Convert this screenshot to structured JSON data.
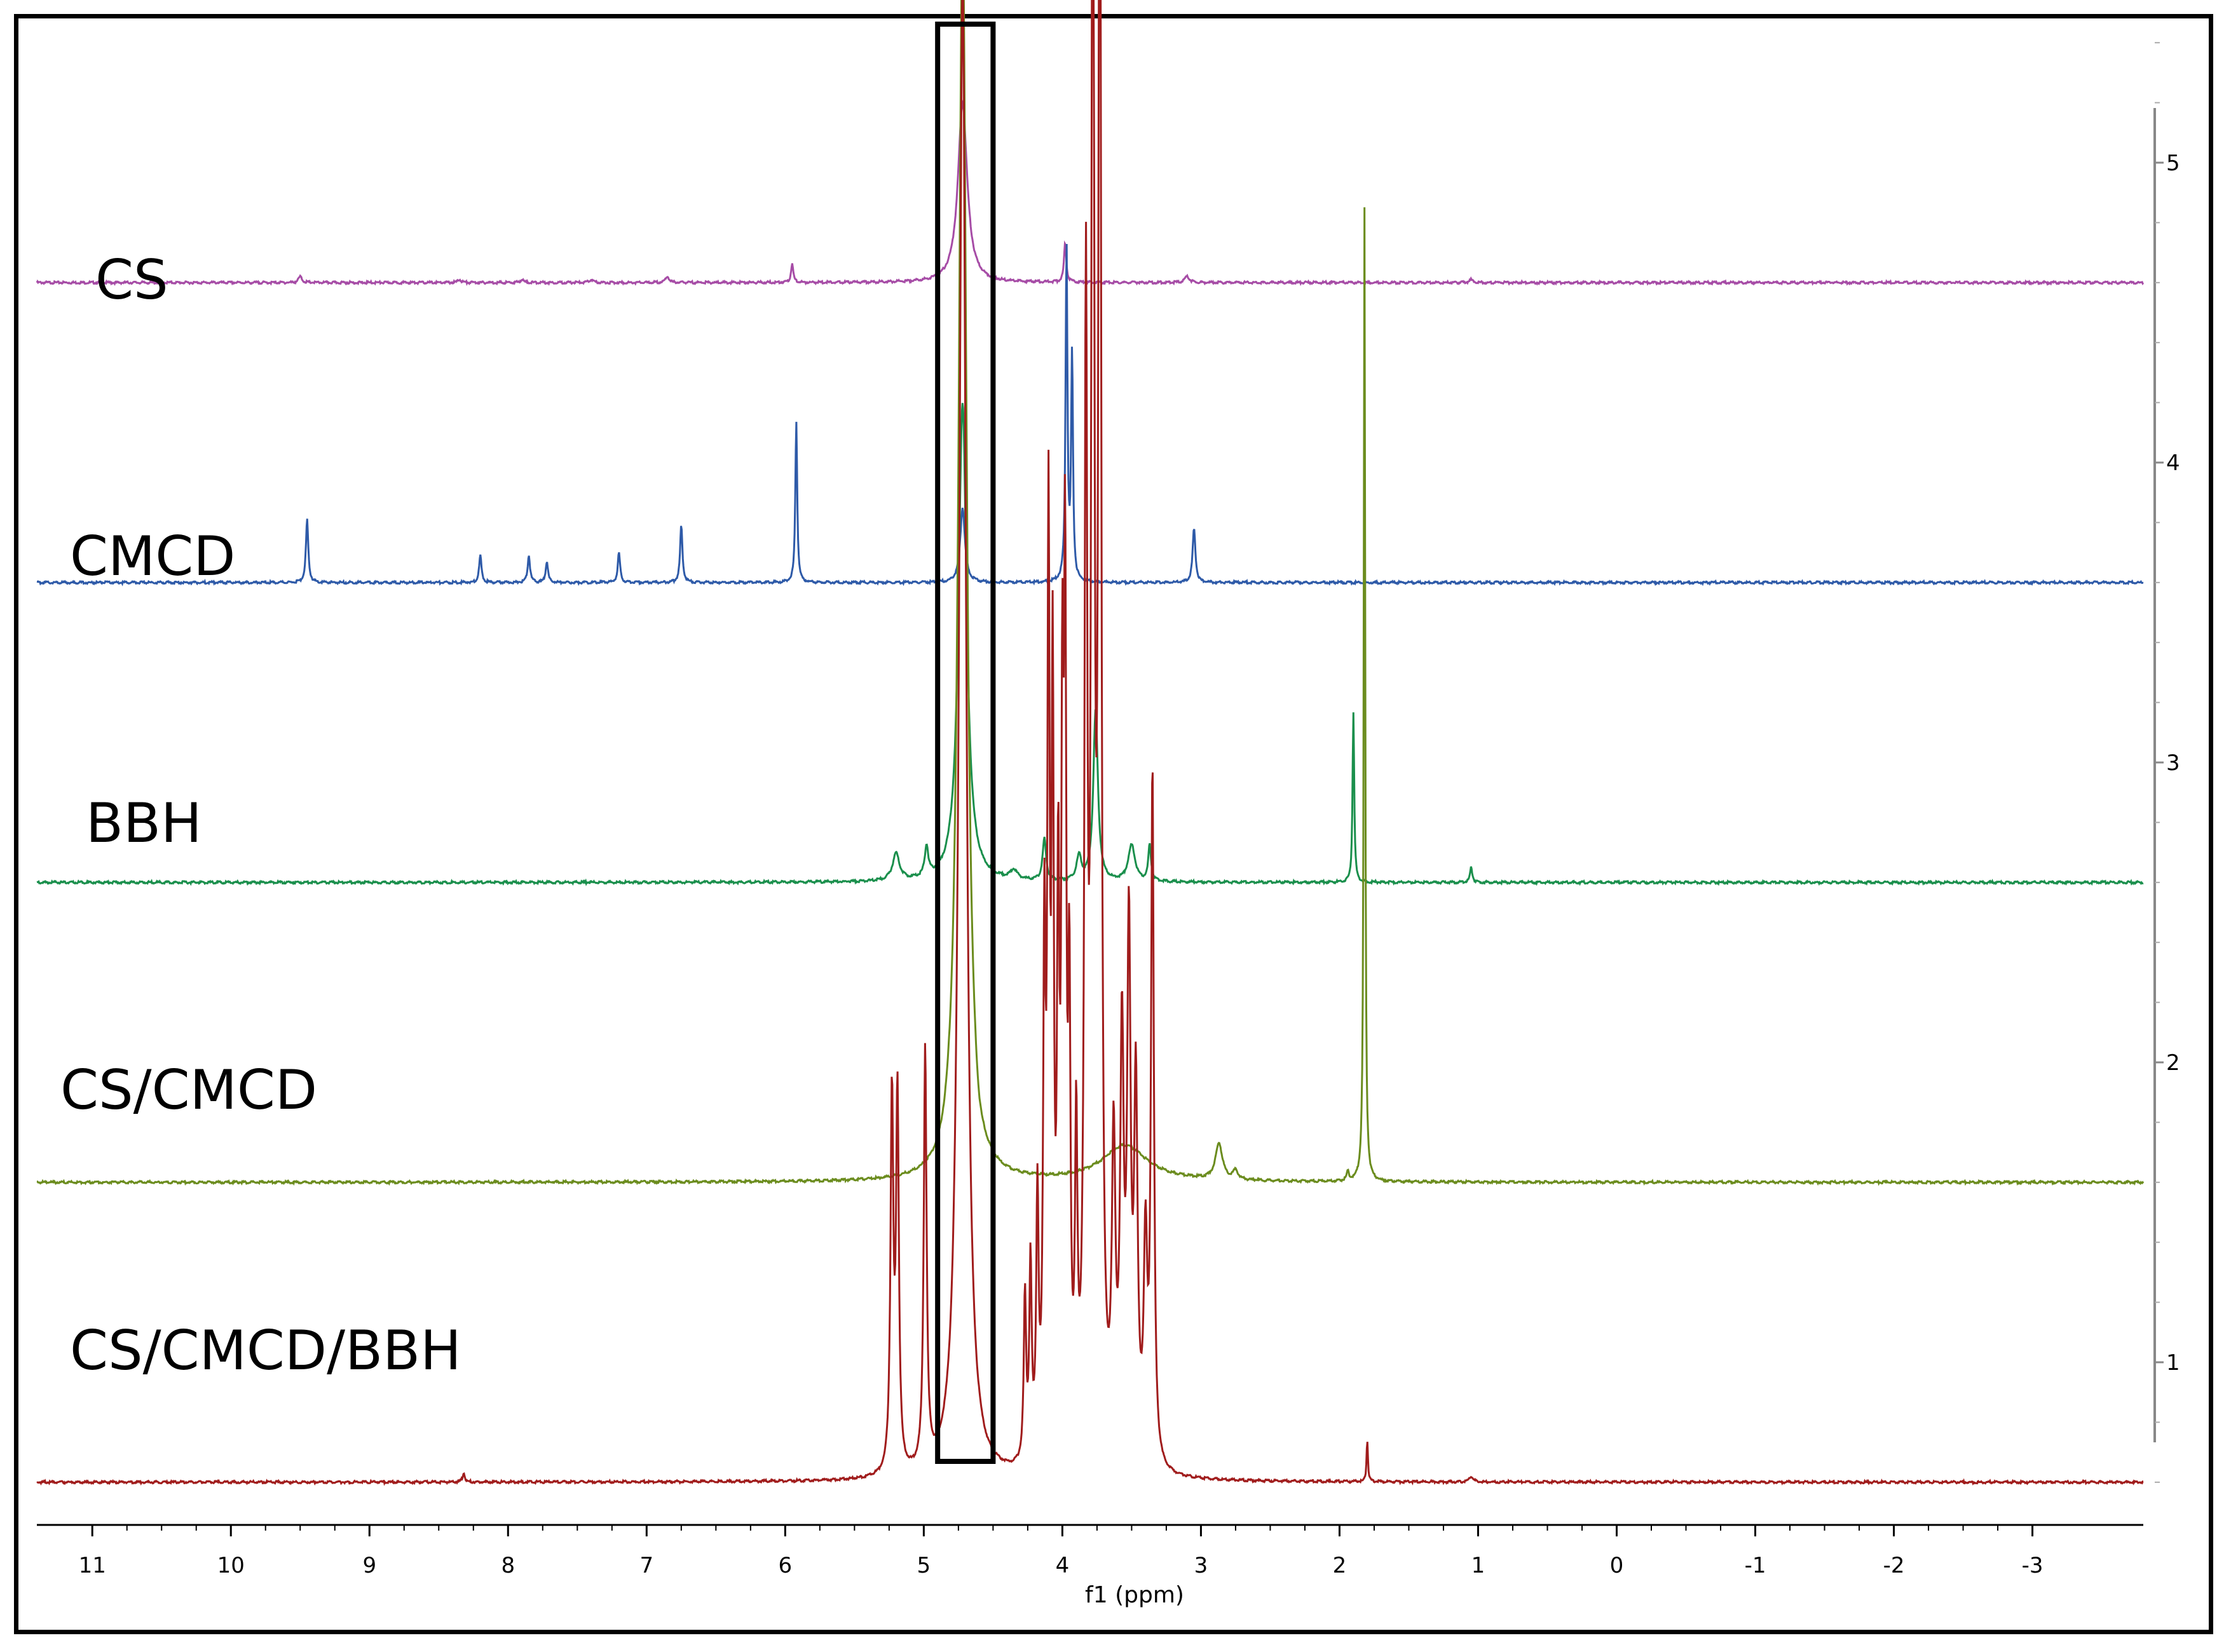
{
  "chart_data": {
    "type": "line",
    "xlabel": "f1 (ppm)",
    "x_reversed": true,
    "xlim": [
      11.4,
      -3.8
    ],
    "x_ticks": [
      11,
      10,
      9,
      8,
      7,
      6,
      5,
      4,
      3,
      2,
      1,
      0,
      -1,
      -2,
      -3
    ],
    "ylim": [
      0.5,
      5.5
    ],
    "y_ticks": [
      1,
      2,
      3,
      4,
      5
    ],
    "highlight_box": {
      "x_range": [
        4.9,
        4.5
      ],
      "color": "#000000"
    },
    "series": [
      {
        "name": "CS",
        "color": "#a64ca6",
        "baseline": 4.6,
        "peaks": [
          {
            "x": 9.5,
            "h": 0.02,
            "w": 0.015
          },
          {
            "x": 8.35,
            "h": 0.01,
            "w": 0.015
          },
          {
            "x": 7.9,
            "h": 0.01,
            "w": 0.015
          },
          {
            "x": 7.4,
            "h": 0.01,
            "w": 0.015
          },
          {
            "x": 6.85,
            "h": 0.02,
            "w": 0.015
          },
          {
            "x": 5.95,
            "h": 0.06,
            "w": 0.01
          },
          {
            "x": 4.72,
            "h": 0.6,
            "w": 0.04
          },
          {
            "x": 3.98,
            "h": 0.13,
            "w": 0.01
          },
          {
            "x": 3.1,
            "h": 0.02,
            "w": 0.02
          },
          {
            "x": 1.05,
            "h": 0.01,
            "w": 0.015
          }
        ]
      },
      {
        "name": "CMCD",
        "color": "#2e5aa8",
        "baseline": 3.6,
        "peaks": [
          {
            "x": 9.45,
            "h": 0.21,
            "w": 0.01
          },
          {
            "x": 8.2,
            "h": 0.09,
            "w": 0.01
          },
          {
            "x": 7.85,
            "h": 0.09,
            "w": 0.01
          },
          {
            "x": 7.72,
            "h": 0.07,
            "w": 0.01
          },
          {
            "x": 7.2,
            "h": 0.1,
            "w": 0.01
          },
          {
            "x": 6.75,
            "h": 0.19,
            "w": 0.01
          },
          {
            "x": 5.92,
            "h": 0.54,
            "w": 0.008
          },
          {
            "x": 4.72,
            "h": 0.25,
            "w": 0.02
          },
          {
            "x": 3.97,
            "h": 1.12,
            "w": 0.008
          },
          {
            "x": 3.93,
            "h": 0.75,
            "w": 0.008
          },
          {
            "x": 3.05,
            "h": 0.18,
            "w": 0.012
          }
        ]
      },
      {
        "name": "BBH",
        "color": "#1a8f4c",
        "baseline": 2.6,
        "peaks": [
          {
            "x": 5.2,
            "h": 0.09,
            "w": 0.03
          },
          {
            "x": 4.98,
            "h": 0.1,
            "w": 0.015
          },
          {
            "x": 4.72,
            "h": 1.6,
            "w": 0.035
          },
          {
            "x": 4.35,
            "h": 0.03,
            "w": 0.03
          },
          {
            "x": 4.13,
            "h": 0.14,
            "w": 0.015
          },
          {
            "x": 3.88,
            "h": 0.08,
            "w": 0.02
          },
          {
            "x": 3.76,
            "h": 0.57,
            "w": 0.02
          },
          {
            "x": 3.5,
            "h": 0.12,
            "w": 0.03
          },
          {
            "x": 3.37,
            "h": 0.12,
            "w": 0.012
          },
          {
            "x": 1.9,
            "h": 0.57,
            "w": 0.007
          },
          {
            "x": 1.05,
            "h": 0.05,
            "w": 0.01
          }
        ]
      },
      {
        "name": "CS/CMCD",
        "color": "#6b8c1e",
        "baseline": 1.6,
        "peaks": [
          {
            "x": 4.72,
            "h": 4.2,
            "w": 0.035
          },
          {
            "x": 4.6,
            "h": -0.04,
            "w": 0.03
          },
          {
            "x": 3.55,
            "h": 0.12,
            "w": 0.2
          },
          {
            "x": 2.87,
            "h": 0.12,
            "w": 0.03
          },
          {
            "x": 2.75,
            "h": 0.03,
            "w": 0.02
          },
          {
            "x": 1.94,
            "h": 0.03,
            "w": 0.01
          },
          {
            "x": 1.82,
            "h": 3.25,
            "w": 0.006
          }
        ]
      },
      {
        "name": "CS/CMCD/BBH",
        "color": "#a01c1c",
        "baseline": 0.6,
        "peaks": [
          {
            "x": 8.32,
            "h": 0.03,
            "w": 0.01
          },
          {
            "x": 5.23,
            "h": 1.25,
            "w": 0.012
          },
          {
            "x": 5.19,
            "h": 1.25,
            "w": 0.012
          },
          {
            "x": 4.99,
            "h": 1.4,
            "w": 0.012
          },
          {
            "x": 4.72,
            "h": 5.0,
            "w": 0.03
          },
          {
            "x": 4.27,
            "h": 0.55,
            "w": 0.01
          },
          {
            "x": 4.23,
            "h": 0.65,
            "w": 0.01
          },
          {
            "x": 4.18,
            "h": 0.85,
            "w": 0.01
          },
          {
            "x": 4.13,
            "h": 1.6,
            "w": 0.01
          },
          {
            "x": 4.1,
            "h": 2.9,
            "w": 0.01
          },
          {
            "x": 4.07,
            "h": 2.4,
            "w": 0.01
          },
          {
            "x": 4.03,
            "h": 1.7,
            "w": 0.01
          },
          {
            "x": 4.0,
            "h": 2.1,
            "w": 0.01
          },
          {
            "x": 3.98,
            "h": 2.6,
            "w": 0.01
          },
          {
            "x": 3.95,
            "h": 1.4,
            "w": 0.01
          },
          {
            "x": 3.9,
            "h": 1.0,
            "w": 0.01
          },
          {
            "x": 3.83,
            "h": 3.7,
            "w": 0.012
          },
          {
            "x": 3.78,
            "h": 6.0,
            "w": 0.012
          },
          {
            "x": 3.73,
            "h": 6.0,
            "w": 0.012
          },
          {
            "x": 3.63,
            "h": 1.0,
            "w": 0.015
          },
          {
            "x": 3.57,
            "h": 1.35,
            "w": 0.015
          },
          {
            "x": 3.52,
            "h": 1.7,
            "w": 0.015
          },
          {
            "x": 3.47,
            "h": 1.2,
            "w": 0.015
          },
          {
            "x": 3.4,
            "h": 0.7,
            "w": 0.015
          },
          {
            "x": 3.35,
            "h": 2.3,
            "w": 0.012
          },
          {
            "x": 1.8,
            "h": 0.14,
            "w": 0.006
          },
          {
            "x": 1.05,
            "h": 0.02,
            "w": 0.015
          }
        ]
      }
    ]
  }
}
